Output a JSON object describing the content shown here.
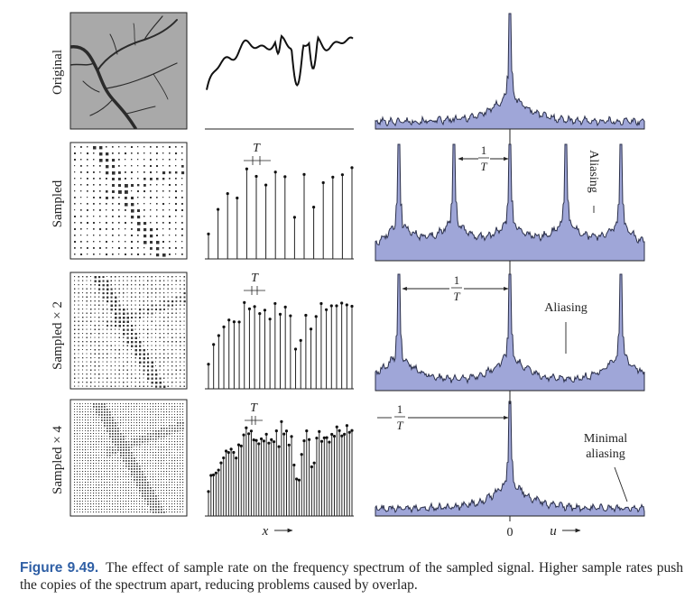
{
  "rows": [
    {
      "label": "Original",
      "spacing": 0
    },
    {
      "label": "Sampled",
      "spacing": 7
    },
    {
      "label": "Sampled × 2",
      "spacing": 5
    },
    {
      "label": "Sampled × 4",
      "spacing": 3
    }
  ],
  "period_label": "T",
  "period_fraction": {
    "numerator": "1",
    "denominator": "T"
  },
  "annotations": {
    "sampled": "Aliasing",
    "sampled_x2": "Aliasing",
    "sampled_x4_line1": "Minimal",
    "sampled_x4_line2": "aliasing"
  },
  "axes": {
    "x_label": "x",
    "u_label": "u",
    "origin_label": "0"
  },
  "caption": {
    "figure": "Figure 9.49.",
    "text": "The effect of sample rate on the frequency spectrum of the sampled signal. Higher sample rates push the copies of the spectrum apart, reducing problems caused by overlap."
  },
  "colors": {
    "spectrum_fill": "#9fa6d8",
    "spectrum_stroke": "#2a2f4a",
    "image_gray": "#a9a9a9",
    "branch": "#2b2b2b",
    "caption_blue": "#2f5fa5"
  }
}
